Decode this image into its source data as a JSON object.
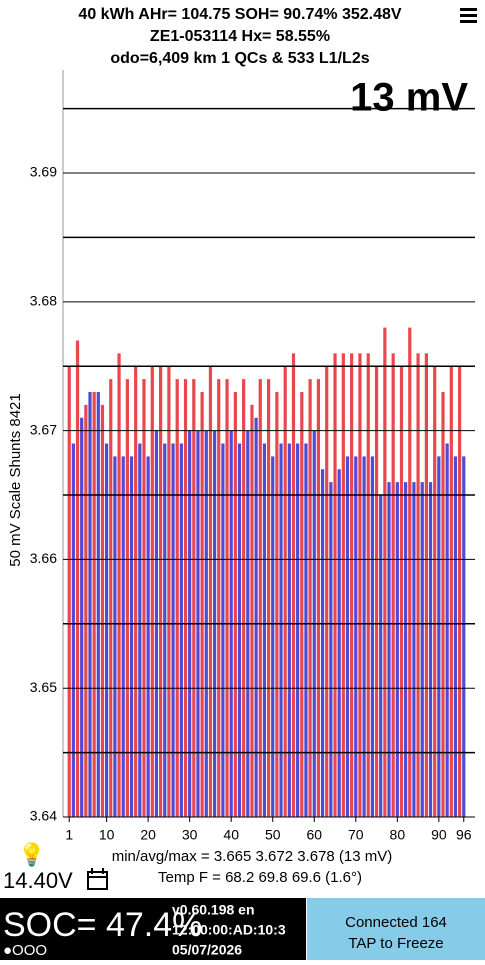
{
  "header": {
    "line1": "40 kWh  AHr= 104.75 SOH= 90.74% 352.48V",
    "line2": "ZE1-053114   Hx= 58.55%",
    "line3": "odo=6,409 km 1 QCs & 533 L1/L2s",
    "spread": "13 mV"
  },
  "chart_data": {
    "type": "bar",
    "y_label": "50 mV Scale   Shunts 8421",
    "x": [
      1,
      2,
      3,
      4,
      5,
      6,
      7,
      8,
      9,
      10,
      11,
      12,
      13,
      14,
      15,
      16,
      17,
      18,
      19,
      20,
      21,
      22,
      23,
      24,
      25,
      26,
      27,
      28,
      29,
      30,
      31,
      32,
      33,
      34,
      35,
      36,
      37,
      38,
      39,
      40,
      41,
      42,
      43,
      44,
      45,
      46,
      47,
      48,
      49,
      50,
      51,
      52,
      53,
      54,
      55,
      56,
      57,
      58,
      59,
      60,
      61,
      62,
      63,
      64,
      65,
      66,
      67,
      68,
      69,
      70,
      71,
      72,
      73,
      74,
      75,
      76,
      77,
      78,
      79,
      80,
      81,
      82,
      83,
      84,
      85,
      86,
      87,
      88,
      89,
      90,
      91,
      92,
      93,
      94,
      95,
      96
    ],
    "values": [
      3.675,
      3.669,
      3.677,
      3.671,
      3.672,
      3.673,
      3.673,
      3.673,
      3.672,
      3.669,
      3.674,
      3.668,
      3.676,
      3.668,
      3.674,
      3.668,
      3.675,
      3.669,
      3.674,
      3.668,
      3.675,
      3.67,
      3.675,
      3.669,
      3.675,
      3.669,
      3.674,
      3.669,
      3.674,
      3.67,
      3.674,
      3.67,
      3.673,
      3.67,
      3.675,
      3.67,
      3.674,
      3.669,
      3.674,
      3.67,
      3.673,
      3.669,
      3.674,
      3.67,
      3.672,
      3.671,
      3.674,
      3.669,
      3.674,
      3.668,
      3.673,
      3.669,
      3.675,
      3.669,
      3.676,
      3.669,
      3.673,
      3.669,
      3.674,
      3.67,
      3.674,
      3.667,
      3.675,
      3.666,
      3.676,
      3.667,
      3.676,
      3.668,
      3.676,
      3.668,
      3.676,
      3.668,
      3.676,
      3.668,
      3.675,
      3.665,
      3.678,
      3.666,
      3.676,
      3.666,
      3.675,
      3.666,
      3.678,
      3.666,
      3.676,
      3.666,
      3.676,
      3.666,
      3.675,
      3.668,
      3.673,
      3.669,
      3.675,
      3.668,
      3.675,
      3.668
    ],
    "colors": [
      "#e8474c",
      "#4e4bd6"
    ],
    "xlim": [
      -0.5,
      97.5
    ],
    "xticks": [
      1,
      10,
      20,
      30,
      40,
      50,
      60,
      70,
      80,
      90,
      96
    ],
    "ylim": [
      3.64,
      3.698
    ],
    "yticks": [
      {
        "value": 3.64,
        "label": "3.64"
      },
      {
        "value": 3.65,
        "label": "3.65"
      },
      {
        "value": 3.66,
        "label": "3.66"
      },
      {
        "value": 3.67,
        "label": "3.67"
      },
      {
        "value": 3.68,
        "label": "3.68"
      },
      {
        "value": 3.69,
        "label": "3.69"
      }
    ],
    "minor_gridlines": [
      3.645,
      3.655,
      3.665,
      3.675,
      3.685,
      3.695
    ],
    "grid": true
  },
  "stats": {
    "minavgmax": "min/avg/max = 3.665 3.672 3.678  (13 mV)",
    "temp": "Temp F = 68.2  69.8  69.6  (1.6°)",
    "voltage12": "14.40V"
  },
  "footer": {
    "soc": "SOC= 47.4%",
    "version": "v0.60.198 en",
    "mac": "12:00:00:AD:10:3",
    "date": "05/07/2026",
    "pages": "●OOO",
    "connected": "Connected 164",
    "tap": "TAP to Freeze"
  }
}
